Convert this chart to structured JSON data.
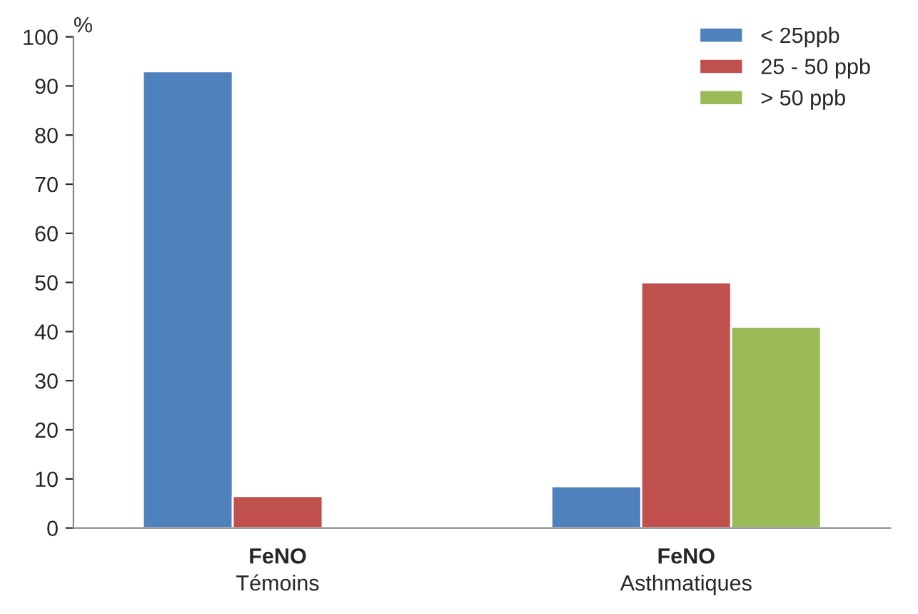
{
  "chart_data": {
    "type": "bar",
    "ylabel": "%",
    "categories": [
      "FeNO\nTémoins",
      "FeNO\nAsthmatiques"
    ],
    "series": [
      {
        "name": "< 25ppb",
        "color": "#4f81bd",
        "values": [
          93,
          8.5
        ]
      },
      {
        "name": "25 - 50 ppb",
        "color": "#c0504d",
        "values": [
          6.5,
          50
        ]
      },
      {
        "name": "> 50 ppb",
        "color": "#9bbb59",
        "values": [
          null,
          41
        ]
      }
    ],
    "ylim": [
      0,
      100
    ],
    "yticks": [
      0,
      10,
      20,
      30,
      40,
      50,
      60,
      70,
      80,
      90,
      100
    ],
    "grid": false,
    "legend": "top right"
  }
}
